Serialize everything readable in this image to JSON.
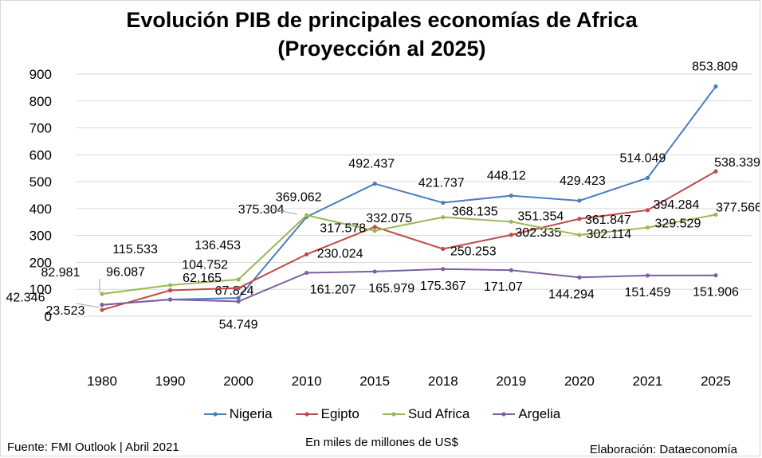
{
  "chart_data": {
    "type": "line",
    "title": "Evolución PIB de principales economías de Africa",
    "subtitle": "(Proyección al 2025)",
    "categories": [
      "1980",
      "1990",
      "2000",
      "2010",
      "2015",
      "2018",
      "2019",
      "2020",
      "2021",
      "2025"
    ],
    "yticks": [
      "900",
      "800",
      "700",
      "600",
      "500",
      "400",
      "300",
      "200",
      "100",
      "0"
    ],
    "ylim": [
      0,
      900
    ],
    "grid": true,
    "legend_position": "bottom",
    "series": [
      {
        "name": "Nigeria",
        "color": "#4a7ebb",
        "values": [
          42.346,
          61.892,
          67.824,
          369.062,
          492.437,
          421.737,
          448.12,
          429.423,
          514.049,
          853.809
        ],
        "labels": [
          "",
          "",
          "67.824",
          "369.062",
          "492.437",
          "421.737",
          "448.12",
          "429.423",
          "514.049",
          "853.809"
        ]
      },
      {
        "name": "Egipto",
        "color": "#be4b48",
        "values": [
          23.523,
          96.087,
          104.752,
          230.024,
          332.075,
          250.253,
          302.335,
          361.847,
          394.284,
          538.339
        ],
        "labels": [
          "23.523",
          "96.087",
          "104.752",
          "230.024",
          "332.075",
          "250.253",
          "302.335",
          "361.847",
          "394.284",
          "538.339"
        ]
      },
      {
        "name": "Sud Africa",
        "color": "#98b954",
        "values": [
          82.981,
          115.533,
          136.453,
          375.304,
          317.578,
          368.135,
          351.354,
          302.114,
          329.529,
          377.566
        ],
        "labels": [
          "82.981",
          "115.533",
          "136.453",
          "375.304",
          "317.578",
          "368.135",
          "351.354",
          "302.114",
          "329.529",
          "377.566"
        ]
      },
      {
        "name": "Argelia",
        "color": "#7d60a0",
        "values": [
          42.346,
          62.165,
          54.749,
          161.207,
          165.979,
          175.367,
          171.07,
          144.294,
          151.459,
          151.906
        ],
        "labels": [
          "42.346",
          "62.165",
          "54.749",
          "161.207",
          "165.979",
          "175.367",
          "171.07",
          "144.294",
          "151.459",
          "151.906"
        ]
      }
    ]
  },
  "footer": {
    "source": "Fuente: FMI Outlook | Abril 2021",
    "unit": "En miles de millones de US$",
    "credit": "Elaboración: Dataeconomía"
  }
}
